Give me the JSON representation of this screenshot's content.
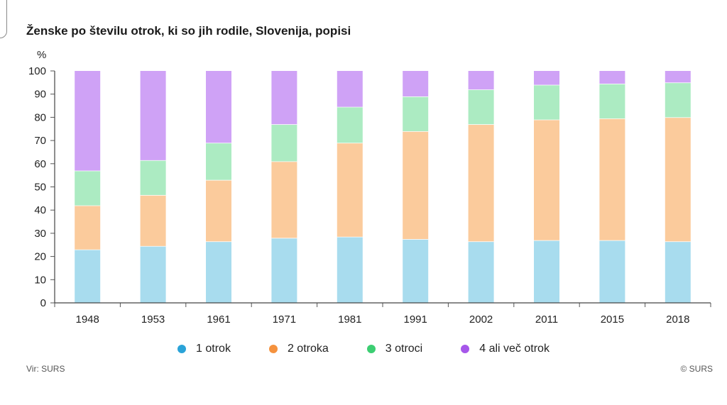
{
  "title": "Ženske po številu otrok, ki so jih rodile, Slovenija, popisi",
  "source": "Vir: SURS",
  "copyright": "© SURS",
  "chart_data": {
    "type": "bar",
    "stacked": true,
    "title": "Ženske po številu otrok, ki so jih rodile, Slovenija, popisi",
    "ylabel": "%",
    "xlabel": "",
    "ylim": [
      0,
      100
    ],
    "yticks": [
      0,
      10,
      20,
      30,
      40,
      50,
      60,
      70,
      80,
      90,
      100
    ],
    "grid": false,
    "legend_position": "bottom",
    "categories": [
      "1948",
      "1953",
      "1961",
      "1971",
      "1981",
      "1991",
      "2002",
      "2011",
      "2015",
      "2018"
    ],
    "series": [
      {
        "name": "1 otrok",
        "color": "#a8dcee",
        "legend_color": "#2aa3d8",
        "values": [
          23,
          24.5,
          26.5,
          28,
          28.5,
          27.5,
          26.5,
          27,
          27,
          26.5
        ]
      },
      {
        "name": "2 otroka",
        "color": "#fbcb9c",
        "legend_color": "#f5923e",
        "values": [
          19,
          22,
          26.5,
          33,
          40.5,
          46.5,
          50.5,
          52,
          52.5,
          53.5
        ]
      },
      {
        "name": "3 otroci",
        "color": "#acebc2",
        "legend_color": "#3cce72",
        "values": [
          15,
          15,
          16,
          16,
          15.5,
          15,
          15,
          15,
          15,
          15
        ]
      },
      {
        "name": "4 ali več otrok",
        "color": "#cfa2f6",
        "legend_color": "#a657ea",
        "values": [
          43,
          38.5,
          31,
          23,
          15.5,
          11,
          8,
          6,
          5.5,
          5
        ]
      }
    ]
  }
}
